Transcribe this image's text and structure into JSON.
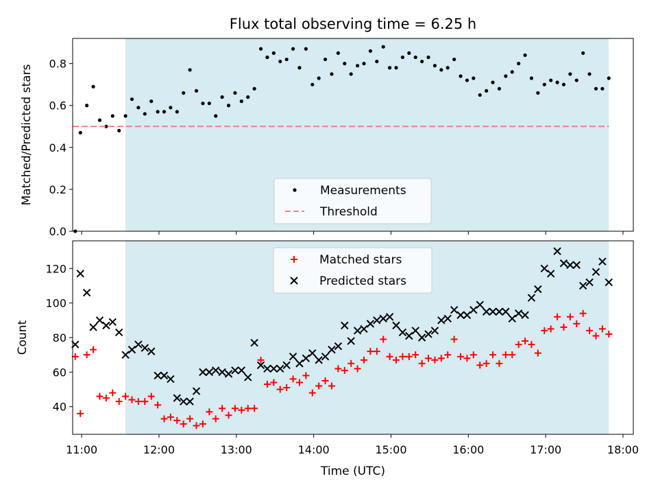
{
  "chart_data": {
    "type": "scatter",
    "title": "Flux total observing time = 6.25 h",
    "xlabel": "Time (UTC)",
    "x_ticks": [
      "11:00",
      "12:00",
      "13:00",
      "14:00",
      "15:00",
      "16:00",
      "17:00",
      "18:00"
    ],
    "x_range": [
      "10:53",
      "18:08"
    ],
    "observing_window": {
      "start": "11:34",
      "end": "17:49",
      "color": "#add8e6"
    },
    "panels": [
      {
        "ylabel": "Matched/Predicted stars",
        "ylim": [
          0.0,
          0.92
        ],
        "y_ticks": [
          "0.0",
          "0.2",
          "0.4",
          "0.6",
          "0.8"
        ],
        "legend_position": "lower center",
        "series": [
          {
            "name": "Measurements",
            "marker": "dot",
            "color": "#000000",
            "x": [
              "10:55",
              "10:59",
              "11:04",
              "11:09",
              "11:14",
              "11:19",
              "11:24",
              "11:29",
              "11:34",
              "11:39",
              "11:44",
              "11:49",
              "11:54",
              "11:59",
              "12:04",
              "12:09",
              "12:14",
              "12:19",
              "12:24",
              "12:29",
              "12:34",
              "12:39",
              "12:44",
              "12:49",
              "12:54",
              "12:59",
              "13:04",
              "13:09",
              "13:14",
              "13:19",
              "13:24",
              "13:29",
              "13:34",
              "13:39",
              "13:44",
              "13:49",
              "13:54",
              "13:59",
              "14:04",
              "14:09",
              "14:14",
              "14:19",
              "14:24",
              "14:29",
              "14:34",
              "14:39",
              "14:44",
              "14:49",
              "14:54",
              "14:59",
              "15:04",
              "15:09",
              "15:14",
              "15:19",
              "15:24",
              "15:29",
              "15:34",
              "15:39",
              "15:44",
              "15:49",
              "15:54",
              "15:59",
              "16:04",
              "16:09",
              "16:14",
              "16:19",
              "16:24",
              "16:29",
              "16:34",
              "16:39",
              "16:44",
              "16:49",
              "16:54",
              "16:59",
              "17:04",
              "17:09",
              "17:14",
              "17:19",
              "17:24",
              "17:29",
              "17:34",
              "17:39",
              "17:44",
              "17:49"
            ],
            "y": [
              0.0,
              0.47,
              0.6,
              0.69,
              0.53,
              0.5,
              0.55,
              0.48,
              0.55,
              0.63,
              0.59,
              0.56,
              0.62,
              0.57,
              0.57,
              0.59,
              0.57,
              0.66,
              0.77,
              0.67,
              0.61,
              0.61,
              0.55,
              0.64,
              0.6,
              0.66,
              0.62,
              0.64,
              0.68,
              0.87,
              0.83,
              0.85,
              0.81,
              0.82,
              0.87,
              0.78,
              0.87,
              0.7,
              0.73,
              0.82,
              0.75,
              0.85,
              0.8,
              0.75,
              0.79,
              0.8,
              0.86,
              0.81,
              0.88,
              0.78,
              0.78,
              0.83,
              0.85,
              0.83,
              0.81,
              0.83,
              0.79,
              0.77,
              0.78,
              0.82,
              0.74,
              0.72,
              0.73,
              0.65,
              0.67,
              0.71,
              0.68,
              0.74,
              0.76,
              0.8,
              0.84,
              0.73,
              0.66,
              0.7,
              0.72,
              0.71,
              0.7,
              0.75,
              0.72,
              0.85,
              0.75,
              0.68,
              0.68,
              0.73
            ]
          },
          {
            "name": "Threshold",
            "marker": "dashed-line",
            "color": "#f08080",
            "x": [
              "10:53",
              "17:49"
            ],
            "y": [
              0.5,
              0.5
            ]
          }
        ]
      },
      {
        "ylabel": "Count",
        "ylim": [
          24,
          136
        ],
        "y_ticks": [
          "40",
          "60",
          "80",
          "100",
          "120"
        ],
        "legend_position": "upper center",
        "series": [
          {
            "name": "Matched stars",
            "marker": "plus",
            "color": "#ff0000",
            "x": [
              "10:55",
              "10:59",
              "11:04",
              "11:09",
              "11:14",
              "11:19",
              "11:24",
              "11:29",
              "11:34",
              "11:39",
              "11:44",
              "11:49",
              "11:54",
              "11:59",
              "12:04",
              "12:09",
              "12:14",
              "12:19",
              "12:24",
              "12:29",
              "12:34",
              "12:39",
              "12:44",
              "12:49",
              "12:54",
              "12:59",
              "13:04",
              "13:09",
              "13:14",
              "13:19",
              "13:24",
              "13:29",
              "13:34",
              "13:39",
              "13:44",
              "13:49",
              "13:54",
              "13:59",
              "14:04",
              "14:09",
              "14:14",
              "14:19",
              "14:24",
              "14:29",
              "14:34",
              "14:39",
              "14:44",
              "14:49",
              "14:54",
              "14:59",
              "15:04",
              "15:09",
              "15:14",
              "15:19",
              "15:24",
              "15:29",
              "15:34",
              "15:39",
              "15:44",
              "15:49",
              "15:54",
              "15:59",
              "16:04",
              "16:09",
              "16:14",
              "16:19",
              "16:24",
              "16:29",
              "16:34",
              "16:39",
              "16:44",
              "16:49",
              "16:54",
              "16:59",
              "17:04",
              "17:09",
              "17:14",
              "17:19",
              "17:24",
              "17:29",
              "17:34",
              "17:39",
              "17:44",
              "17:49"
            ],
            "y": [
              69,
              36,
              70,
              73,
              46,
              45,
              48,
              43,
              46,
              44,
              43,
              43,
              46,
              41,
              33,
              34,
              32,
              30,
              33,
              29,
              30,
              37,
              33,
              39,
              35,
              39,
              38,
              39,
              39,
              67,
              53,
              54,
              50,
              51,
              56,
              54,
              58,
              48,
              52,
              55,
              52,
              62,
              61,
              65,
              62,
              67,
              72,
              72,
              79,
              69,
              67,
              69,
              69,
              70,
              65,
              68,
              67,
              68,
              70,
              79,
              69,
              68,
              70,
              64,
              65,
              70,
              65,
              70,
              70,
              76,
              78,
              76,
              71,
              84,
              85,
              92,
              86,
              92,
              88,
              94,
              84,
              81,
              85,
              82
            ]
          },
          {
            "name": "Predicted stars",
            "marker": "x",
            "color": "#000000",
            "x": [
              "10:55",
              "10:59",
              "11:04",
              "11:09",
              "11:14",
              "11:19",
              "11:24",
              "11:29",
              "11:34",
              "11:39",
              "11:44",
              "11:49",
              "11:54",
              "11:59",
              "12:04",
              "12:09",
              "12:14",
              "12:19",
              "12:24",
              "12:29",
              "12:34",
              "12:39",
              "12:44",
              "12:49",
              "12:54",
              "12:59",
              "13:04",
              "13:09",
              "13:14",
              "13:19",
              "13:24",
              "13:29",
              "13:34",
              "13:39",
              "13:44",
              "13:49",
              "13:54",
              "13:59",
              "14:04",
              "14:09",
              "14:14",
              "14:19",
              "14:24",
              "14:29",
              "14:34",
              "14:39",
              "14:44",
              "14:49",
              "14:54",
              "14:59",
              "15:04",
              "15:09",
              "15:14",
              "15:19",
              "15:24",
              "15:29",
              "15:34",
              "15:39",
              "15:44",
              "15:49",
              "15:54",
              "15:59",
              "16:04",
              "16:09",
              "16:14",
              "16:19",
              "16:24",
              "16:29",
              "16:34",
              "16:39",
              "16:44",
              "16:49",
              "16:54",
              "16:59",
              "17:04",
              "17:09",
              "17:14",
              "17:19",
              "17:24",
              "17:29",
              "17:34",
              "17:39",
              "17:44",
              "17:49"
            ],
            "y": [
              76,
              117,
              106,
              86,
              90,
              87,
              89,
              83,
              70,
              73,
              76,
              74,
              72,
              58,
              58,
              56,
              45,
              43,
              43,
              49,
              60,
              60,
              61,
              60,
              59,
              61,
              61,
              57,
              77,
              64,
              62,
              62,
              62,
              64,
              69,
              65,
              68,
              71,
              67,
              69,
              73,
              75,
              87,
              78,
              84,
              85,
              88,
              90,
              91,
              92,
              87,
              83,
              81,
              84,
              80,
              82,
              84,
              90,
              91,
              96,
              93,
              93,
              96,
              99,
              95,
              95,
              95,
              95,
              91,
              94,
              93,
              103,
              108,
              120,
              117,
              130,
              123,
              122,
              122,
              110,
              112,
              118,
              124,
              112
            ]
          }
        ]
      }
    ]
  }
}
